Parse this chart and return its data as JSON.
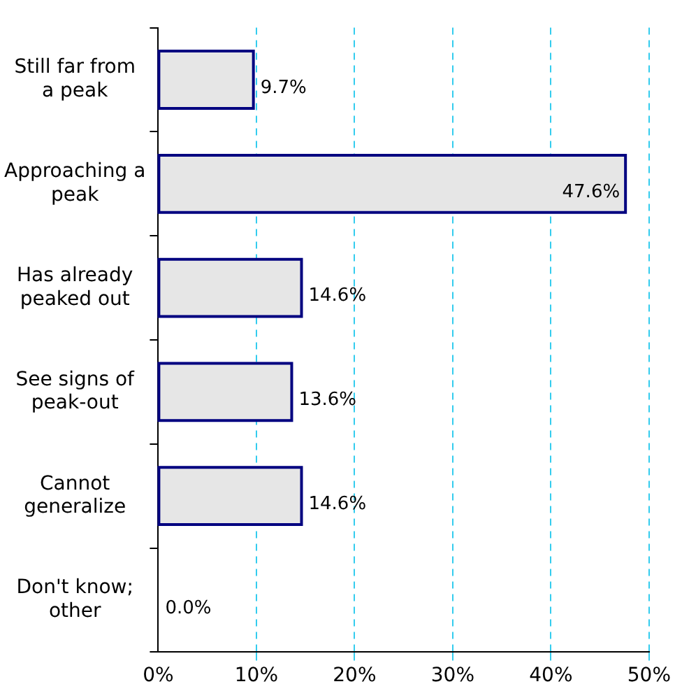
{
  "chart_data": {
    "type": "bar",
    "orientation": "horizontal",
    "categories": [
      "Still far from a peak",
      "Approaching a peak",
      "Has already peaked out",
      "See signs of peak-out",
      "Cannot generalize",
      "Don't know; other"
    ],
    "values": [
      9.7,
      47.6,
      14.6,
      13.6,
      14.6,
      0.0
    ],
    "value_labels": [
      "9.7%",
      "47.6%",
      "14.6%",
      "13.6%",
      "14.6%",
      "0.0%"
    ],
    "color": "#e6e6e6",
    "xlim": [
      0,
      50
    ],
    "xticks": [
      {
        "value": 0,
        "label": "0%"
      },
      {
        "value": 10,
        "label": "10%"
      },
      {
        "value": 20,
        "label": "20%"
      },
      {
        "value": 30,
        "label": "30%"
      },
      {
        "value": 40,
        "label": "40%"
      },
      {
        "value": 50,
        "label": "50%"
      }
    ],
    "grid": "x",
    "legend": false
  }
}
